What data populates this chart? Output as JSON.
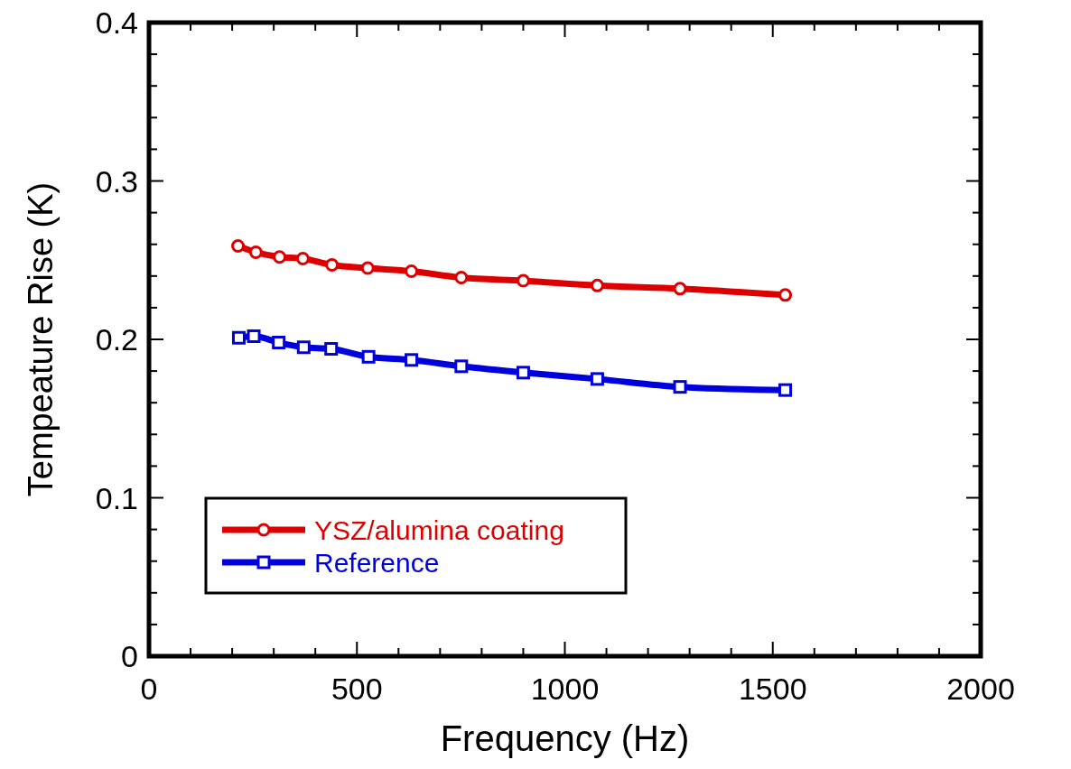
{
  "chart_data": {
    "type": "line",
    "xlabel": "Frequency (Hz)",
    "ylabel": "Tempeature Rise (K)",
    "xlim": [
      0,
      2000
    ],
    "xticks": [
      0,
      500,
      1000,
      1500,
      2000
    ],
    "ylim": [
      0,
      0.4
    ],
    "yticks": [
      0,
      0.1,
      0.2,
      0.3,
      0.4
    ],
    "legend": "bottom left",
    "grid": false,
    "series": [
      {
        "name": "YSZ/alumina coating",
        "color": "#dd0000",
        "marker": "circle",
        "x": [
          214,
          257,
          314,
          370,
          440,
          526,
          631,
          751,
          900,
          1078,
          1277,
          1530
        ],
        "values": [
          0.259,
          0.255,
          0.252,
          0.251,
          0.247,
          0.245,
          0.243,
          0.239,
          0.237,
          0.234,
          0.232,
          0.228
        ]
      },
      {
        "name": "Reference",
        "color": "#0000dd",
        "marker": "square",
        "x": [
          216,
          252,
          312,
          372,
          438,
          528,
          631,
          751,
          900,
          1078,
          1277,
          1530
        ],
        "values": [
          0.201,
          0.202,
          0.198,
          0.195,
          0.194,
          0.189,
          0.187,
          0.183,
          0.179,
          0.175,
          0.17,
          0.168
        ]
      }
    ]
  }
}
